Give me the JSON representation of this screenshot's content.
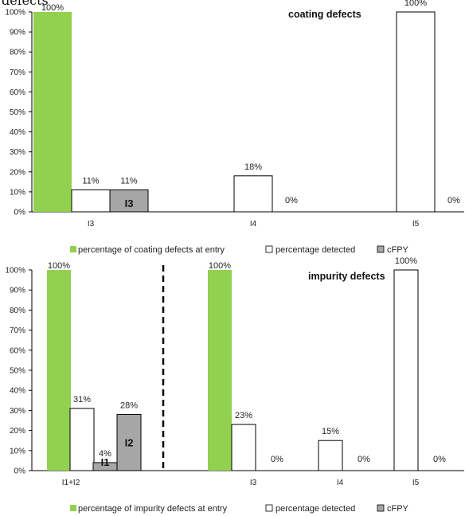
{
  "header_fragment": "defects",
  "colors": {
    "entry": "#92d050",
    "detected": "#ffffff",
    "cfpy": "#a6a6a6",
    "stroke": "#000000"
  },
  "legend": {
    "top": [
      "percentage of coating defects at entry",
      "percentage detected",
      "cFPY"
    ],
    "bottom": [
      "percentage of impurity defects at entry",
      "percentage detected",
      "cFPY"
    ]
  },
  "chart_data": [
    {
      "type": "bar",
      "title": "coating defects",
      "categories": [
        "I3",
        "I4",
        "I5"
      ],
      "ylim": [
        0,
        100
      ],
      "yticks": [
        "0%",
        "10%",
        "20%",
        "30%",
        "40%",
        "50%",
        "60%",
        "70%",
        "80%",
        "90%",
        "100%"
      ],
      "series": [
        {
          "name": "percentage of coating defects at entry",
          "values": [
            100,
            null,
            null
          ]
        },
        {
          "name": "percentage detected",
          "values": [
            11,
            18,
            100
          ]
        },
        {
          "name": "cFPY",
          "values": [
            11,
            0,
            0
          ]
        }
      ],
      "data_labels": {
        "entry": [
          "100%",
          null,
          null
        ],
        "detected": [
          "11%",
          "18%",
          "100%"
        ],
        "cfpy": [
          "11%",
          "0%",
          "0%"
        ]
      },
      "annotations": [
        "I3"
      ]
    },
    {
      "type": "bar",
      "title": "impurity defects",
      "categories": [
        "I1+I2",
        "I3",
        "I4",
        "I5"
      ],
      "ylim": [
        0,
        100
      ],
      "yticks": [
        "0%",
        "10%",
        "20%",
        "30%",
        "40%",
        "50%",
        "60%",
        "70%",
        "80%",
        "90%",
        "100%"
      ],
      "series": [
        {
          "name": "percentage of impurity defects at entry",
          "values": [
            100,
            100,
            null,
            null
          ]
        },
        {
          "name": "percentage detected",
          "values": [
            31,
            23,
            15,
            100
          ]
        },
        {
          "name": "cFPY",
          "values": [
            4,
            0,
            0,
            0
          ],
          "extra": {
            "category": "I1+I2",
            "value": 28
          }
        }
      ],
      "data_labels": {
        "entry": [
          "100%",
          "100%",
          null,
          null
        ],
        "detected": [
          "31%",
          "23%",
          "15%",
          "100%"
        ],
        "cfpy": [
          "4%",
          "0%",
          "0%",
          "0%"
        ],
        "cfpy_extra": "28%"
      },
      "annotations": [
        "I1",
        "I2"
      ]
    }
  ]
}
